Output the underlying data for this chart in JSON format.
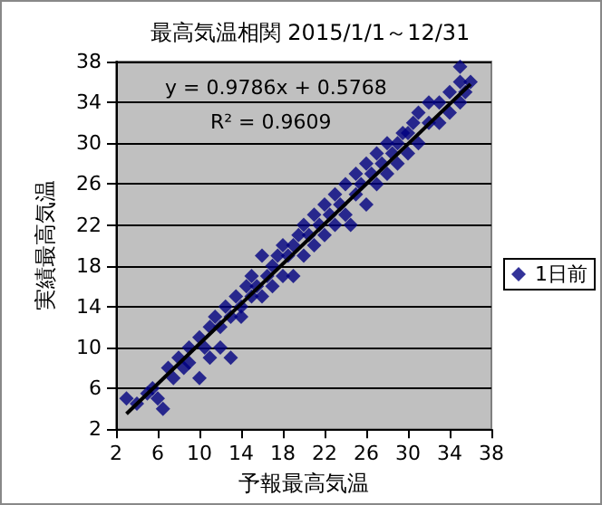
{
  "chart_data": {
    "type": "scatter",
    "title": "最高気温相関 2015/1/1～12/31",
    "xlabel": "予報最高気温",
    "ylabel": "実績最高気温",
    "annotations": [
      "y = 0.9786x + 0.5768",
      "R² = 0.9609"
    ],
    "series": [
      {
        "name": "1日前",
        "color": "#000080",
        "marker": "diamond",
        "x": [
          3,
          4,
          5,
          5.5,
          6,
          6.5,
          7,
          7.5,
          8,
          8.5,
          9,
          9,
          10,
          10,
          10.5,
          11,
          11,
          11.5,
          12,
          12,
          12.5,
          13,
          13,
          13.5,
          14,
          14,
          14.5,
          15,
          15,
          15.5,
          16,
          16,
          16.5,
          17,
          17,
          17.5,
          18,
          18,
          18.5,
          19,
          19,
          19.5,
          20,
          20,
          20.5,
          21,
          21,
          21.5,
          22,
          22,
          22.5,
          23,
          23,
          23.5,
          24,
          24,
          24.5,
          25,
          25,
          25.5,
          26,
          26,
          26.5,
          27,
          27,
          27.5,
          28,
          28,
          28.5,
          29,
          29,
          29.5,
          30,
          30,
          30.5,
          31,
          31,
          32,
          32,
          33,
          33,
          34,
          34,
          35,
          35,
          35.5,
          36,
          35
        ],
        "values": [
          5,
          4.5,
          5.5,
          6,
          5,
          4,
          8,
          7,
          9,
          8,
          10,
          8.5,
          11,
          7,
          10,
          12,
          9,
          13,
          12,
          10,
          14,
          13,
          9,
          15,
          14,
          13,
          16,
          15,
          17,
          16,
          19,
          15,
          17,
          18,
          16,
          19,
          17,
          20,
          19,
          20,
          17,
          21,
          22,
          19,
          21,
          23,
          20,
          22,
          24,
          21,
          23,
          22,
          25,
          24,
          26,
          23,
          22,
          25,
          27,
          26,
          24,
          28,
          27,
          29,
          26,
          28,
          30,
          27,
          29,
          30,
          28,
          31,
          31,
          29,
          32,
          33,
          30,
          32,
          34,
          34,
          32,
          35,
          33,
          36,
          34,
          35,
          36,
          37.5
        ]
      },
      {
        "type": "line",
        "color": "#000000",
        "x": [
          3,
          36
        ],
        "values": [
          3.5,
          35.8
        ]
      }
    ],
    "xlim": [
      2,
      38
    ],
    "xticks": [
      2,
      6,
      10,
      14,
      18,
      22,
      26,
      30,
      34,
      38
    ],
    "ylim": [
      2,
      38
    ],
    "yticks": [
      2,
      6,
      10,
      14,
      18,
      22,
      26,
      30,
      34,
      38
    ],
    "grid": "y",
    "legend": "right"
  }
}
